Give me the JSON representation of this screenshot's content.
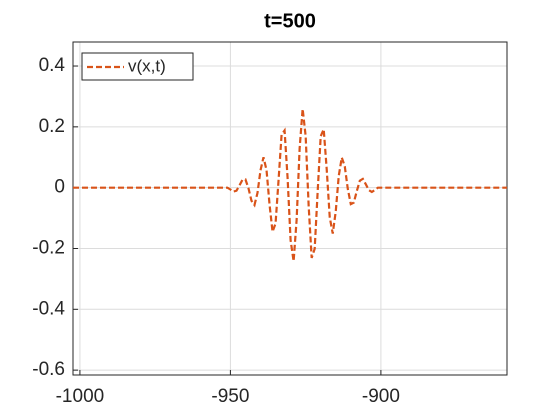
{
  "chart_data": {
    "type": "line",
    "title": "t=500",
    "x": [
      -1002.3,
      -951,
      -950,
      -949,
      -948,
      -947,
      -946,
      -945,
      -944,
      -943,
      -942,
      -941,
      -940,
      -939,
      -938,
      -937,
      -936,
      -935,
      -934,
      -933,
      -932,
      -931,
      -930,
      -929,
      -928,
      -927,
      -926,
      -925,
      -924,
      -923,
      -922,
      -921,
      -920,
      -919,
      -918,
      -917,
      -916,
      -915,
      -914,
      -913,
      -912,
      -911,
      -910,
      -909,
      -908,
      -907,
      -906,
      -905,
      -904,
      -903,
      -902,
      -901,
      -858.1
    ],
    "series": [
      {
        "name": "v(x,t)",
        "color": "#D95319",
        "dashed": true,
        "values": [
          0,
          0,
          -0.006,
          -0.013,
          -0.01,
          0.007,
          0.026,
          0.027,
          -0.002,
          -0.043,
          -0.057,
          -0.017,
          0.057,
          0.1,
          0.058,
          -0.055,
          -0.145,
          -0.118,
          0.025,
          0.174,
          0.188,
          0.032,
          -0.173,
          -0.242,
          -0.106,
          0.129,
          0.259,
          0.17,
          -0.06,
          -0.231,
          -0.201,
          -0.011,
          0.169,
          0.192,
          0.06,
          -0.097,
          -0.151,
          -0.078,
          0.039,
          0.099,
          0.07,
          -0.004,
          -0.054,
          -0.049,
          -0.011,
          0.023,
          0.029,
          0.011,
          -0.008,
          -0.014,
          -0.008,
          0,
          0
        ]
      }
    ],
    "xlim": [
      -1002.3,
      -858.1
    ],
    "xticks": [
      -1000,
      -950,
      -900
    ],
    "ylim": [
      -0.616,
      0.479
    ],
    "yticks": [
      -0.6,
      -0.4,
      -0.2,
      0,
      0.2,
      0.4
    ],
    "grid": true,
    "legend": "northwest"
  }
}
